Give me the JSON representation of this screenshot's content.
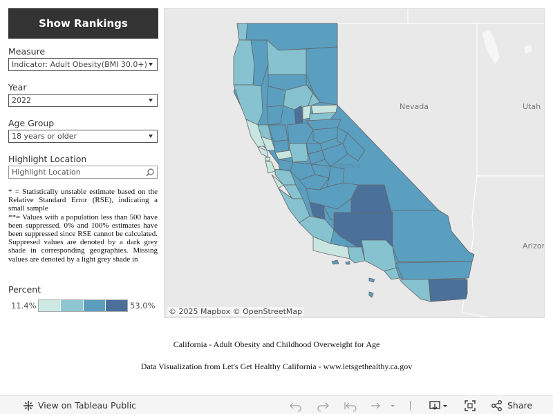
{
  "panel": {
    "show_rankings_label": "Show Rankings",
    "measure": {
      "label": "Measure",
      "value": "Indicator: Adult Obesity(BMI 30.0+)"
    },
    "year": {
      "label": "Year",
      "value": "2022"
    },
    "age_group": {
      "label": "Age Group",
      "value": "18 years or older"
    },
    "highlight": {
      "label": "Highlight Location",
      "placeholder": "Highlight Location"
    },
    "notes": [
      "* = Statistically unstable estimate based on the Relative Standard Error (RSE), indicating a small sample",
      "**= Values with a population less than 500 have been suppressed. 0% and 100% estimates have been suppressed since RSE cannot be calculated. Suppresed values are denoted by a dark grey shade in corresponding geographies. Missing values are denoted by a light grey shade in"
    ],
    "legend": {
      "label": "Percent",
      "min": "11.4%",
      "max": "53.0%",
      "colors": [
        "#cde9e3",
        "#8ec7d1",
        "#5b9dbd",
        "#4a6f9a"
      ]
    }
  },
  "map": {
    "labels": {
      "nevada": "Nevada",
      "utah": "Utah",
      "arizona": "Arizona",
      "california": "California"
    },
    "attribution": "© 2025 Mapbox  © OpenStreetMap",
    "colors": {
      "light": "#c8e6df",
      "mid": "#86c2cf",
      "base": "#5a9ec0",
      "dark": "#4b7099",
      "land": "#e9e9e9",
      "outline": "#666666"
    }
  },
  "captions": {
    "title": "California - Adult Obesity and Childhood Overweight for Age",
    "source": "Data Visualization from Let's Get Healthy California - www.letsgethealthy.ca.gov"
  },
  "toolbar": {
    "view_label": "View on Tableau Public",
    "share_label": "Share",
    "icons": [
      "tableau-icon",
      "undo-icon",
      "redo-icon",
      "revert-icon",
      "refresh-icon",
      "download-icon",
      "fullscreen-icon",
      "share-icon"
    ]
  }
}
